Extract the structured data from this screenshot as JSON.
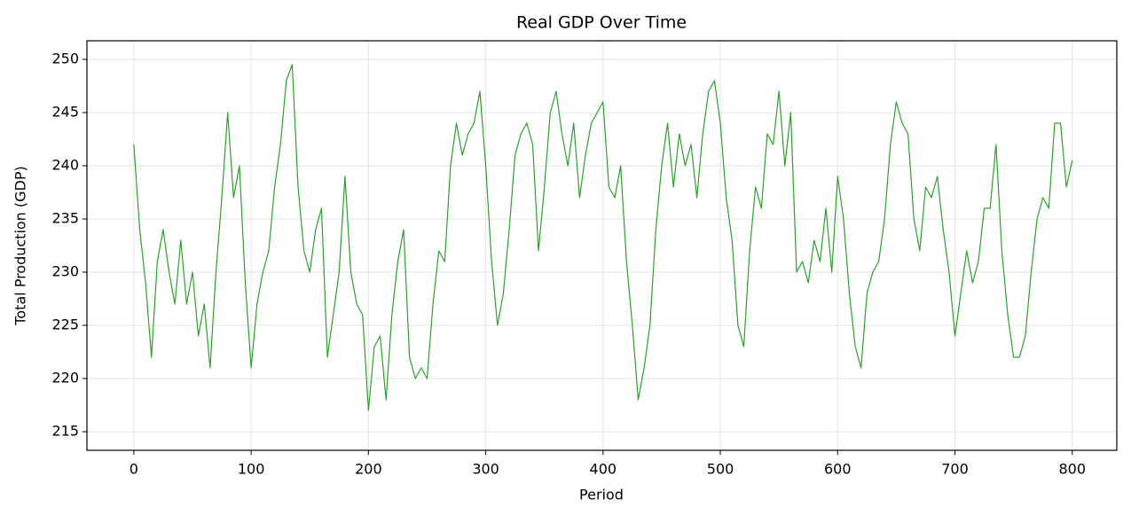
{
  "chart_data": {
    "type": "line",
    "title": "Real GDP Over Time",
    "x_label": "Period",
    "y_label": "Total Production (GDP)",
    "x": [
      0,
      5,
      10,
      15,
      20,
      25,
      30,
      35,
      40,
      45,
      50,
      55,
      60,
      65,
      70,
      75,
      80,
      85,
      90,
      95,
      100,
      105,
      110,
      115,
      120,
      125,
      130,
      135,
      140,
      145,
      150,
      155,
      160,
      165,
      170,
      175,
      180,
      185,
      190,
      195,
      200,
      205,
      210,
      215,
      220,
      225,
      230,
      235,
      240,
      245,
      250,
      255,
      260,
      265,
      270,
      275,
      280,
      285,
      290,
      295,
      300,
      305,
      310,
      315,
      320,
      325,
      330,
      335,
      340,
      345,
      350,
      355,
      360,
      365,
      370,
      375,
      380,
      385,
      390,
      395,
      400,
      405,
      410,
      415,
      420,
      425,
      430,
      435,
      440,
      445,
      450,
      455,
      460,
      465,
      470,
      475,
      480,
      485,
      490,
      495,
      500,
      505,
      510,
      515,
      520,
      525,
      530,
      535,
      540,
      545,
      550,
      555,
      560,
      565,
      570,
      575,
      580,
      585,
      590,
      595,
      600,
      605,
      610,
      615,
      620,
      625,
      630,
      635,
      640,
      645,
      650,
      655,
      660,
      665,
      670,
      675,
      680,
      685,
      690,
      695,
      700,
      705,
      710,
      715,
      720,
      725,
      730,
      735,
      740,
      745,
      750,
      755,
      760,
      765,
      770,
      775,
      780,
      785,
      790,
      795,
      800
    ],
    "series": [
      {
        "name": "Real GDP",
        "color": "#2ca02c",
        "values": [
          242,
          234,
          229,
          222,
          231,
          234,
          230,
          227,
          233,
          227,
          230,
          224,
          227,
          221,
          230,
          237,
          245,
          237,
          240,
          229,
          221,
          227,
          230,
          232,
          238,
          242,
          248,
          249.5,
          238,
          232,
          230,
          234,
          236,
          222,
          226,
          230,
          239,
          230,
          227,
          226,
          217,
          223,
          224,
          218,
          226,
          231,
          234,
          222,
          220,
          221,
          220,
          227,
          232,
          231,
          240,
          244,
          241,
          243,
          244,
          247,
          240,
          231,
          225,
          228,
          234,
          241,
          243,
          244,
          242,
          232,
          238,
          245,
          247,
          243,
          240,
          244,
          237,
          241,
          244,
          245,
          246,
          238,
          237,
          240,
          231,
          225,
          218,
          221,
          225,
          234,
          240,
          244,
          238,
          243,
          240,
          242,
          237,
          243,
          247,
          248,
          244,
          237,
          233,
          225,
          223,
          232,
          238,
          236,
          243,
          242,
          247,
          240,
          245,
          230,
          231,
          229,
          233,
          231,
          236,
          230,
          239,
          235,
          228,
          223,
          221,
          228,
          230,
          231,
          235,
          242,
          246,
          244,
          243,
          235,
          232,
          238,
          237,
          239,
          234,
          230,
          224,
          228,
          232,
          229,
          231,
          236,
          236,
          242,
          232,
          226,
          222,
          222,
          224,
          230,
          235,
          237,
          236,
          244,
          244,
          238,
          240.5
        ]
      }
    ],
    "xlim": [
      -40,
      838
    ],
    "ylim": [
      213.25,
      251.75
    ],
    "xticks": [
      0,
      100,
      200,
      300,
      400,
      500,
      600,
      700,
      800
    ],
    "yticks": [
      215,
      220,
      225,
      230,
      235,
      240,
      245,
      250
    ],
    "grid": true
  }
}
